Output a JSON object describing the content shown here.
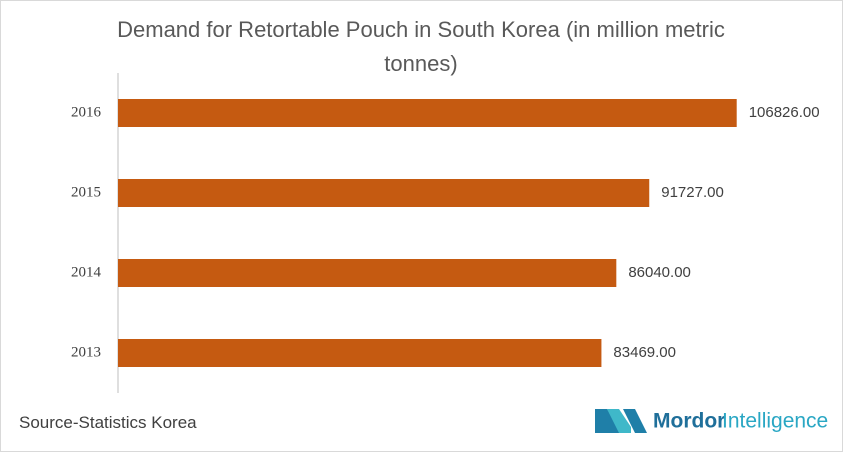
{
  "chart_data": {
    "type": "bar",
    "orientation": "horizontal",
    "title": "Demand for Retortable Pouch in South Korea (in million metric tonnes)",
    "categories": [
      "2016",
      "2015",
      "2014",
      "2013"
    ],
    "values": [
      106826,
      91727,
      86040,
      83469
    ],
    "value_labels": [
      "106826.00",
      "91727.00",
      "86040.00",
      "83469.00"
    ],
    "color": "#c55a11",
    "xlim": [
      0,
      120000
    ]
  },
  "source": "Source-Statistics Korea",
  "logo": {
    "word1": "Mordor",
    "word2": "Intelligence"
  }
}
